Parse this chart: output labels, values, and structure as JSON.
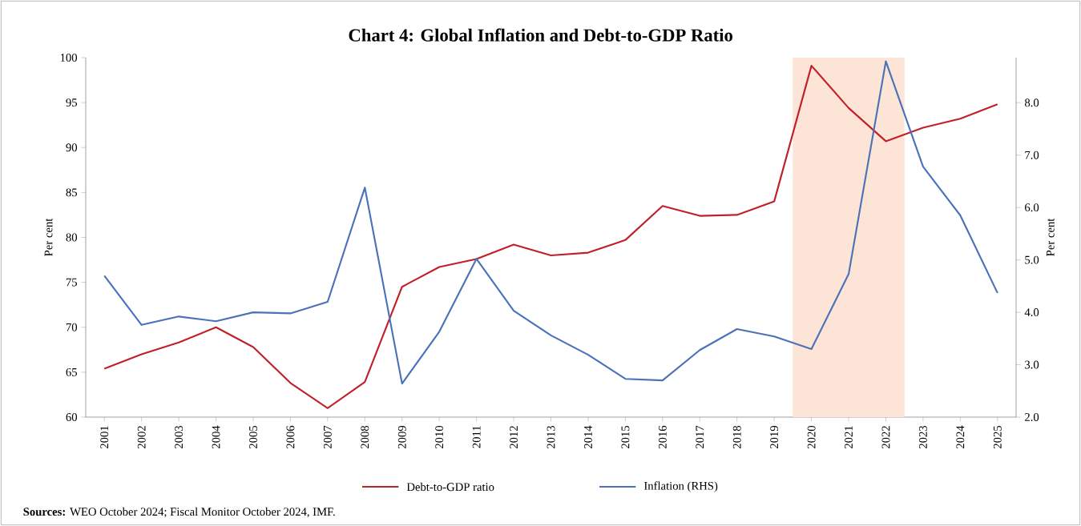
{
  "chart_data": {
    "type": "line",
    "title": "Chart 4: Global Inflation and Debt-to-GDP Ratio",
    "ylabel": "Per cent",
    "y2label": "Per cent",
    "categories": [
      "2001",
      "2002",
      "2003",
      "2004",
      "2005",
      "2006",
      "2007",
      "2008",
      "2009",
      "2010",
      "2011",
      "2012",
      "2013",
      "2014",
      "2015",
      "2016",
      "2017",
      "2018",
      "2019",
      "2020",
      "2021",
      "2022",
      "2023",
      "2024",
      "2025"
    ],
    "series": [
      {
        "name": "Debt-to-GDP ratio",
        "color": "#c0202a",
        "values": [
          65.4,
          67.0,
          68.3,
          70.0,
          67.8,
          63.8,
          61.0,
          63.9,
          74.5,
          76.7,
          77.6,
          79.2,
          78.0,
          78.3,
          79.7,
          83.5,
          82.4,
          82.5,
          84.0,
          99.1,
          94.4,
          90.7,
          92.2,
          93.2,
          94.8
        ]
      },
      {
        "name": "Inflation (RHS)",
        "color": "#4a72b8",
        "axis": "y2",
        "values": [
          4.7,
          3.76,
          3.92,
          3.83,
          4.0,
          3.98,
          4.2,
          6.38,
          2.64,
          3.63,
          5.02,
          4.03,
          3.56,
          3.19,
          2.73,
          2.7,
          3.28,
          3.68,
          3.54,
          3.3,
          4.73,
          8.79,
          6.78,
          5.85,
          4.37
        ]
      }
    ],
    "ylim": [
      60,
      100
    ],
    "yticks": [
      60,
      65,
      70,
      75,
      80,
      85,
      90,
      95,
      100
    ],
    "y2lim": [
      2,
      8.86
    ],
    "y2ticks": [
      {
        "value": 2,
        "label": "2.0"
      },
      {
        "value": 3,
        "label": "3.0"
      },
      {
        "value": 4,
        "label": "4.0"
      },
      {
        "value": 5,
        "label": "5.0"
      },
      {
        "value": 6,
        "label": "6.0"
      },
      {
        "value": 7,
        "label": "7.0"
      },
      {
        "value": 8,
        "label": "8.0"
      }
    ],
    "bands": [
      {
        "axis": "x",
        "from": "2020",
        "to": "2022",
        "color": "#fce4d6"
      }
    ],
    "legend": "bottom",
    "grid": false,
    "marker": "none",
    "line_style": "solid",
    "annotations": [
      "**Sources:** WEO October 2024; Fiscal Monitor October 2024, IMF."
    ]
  }
}
